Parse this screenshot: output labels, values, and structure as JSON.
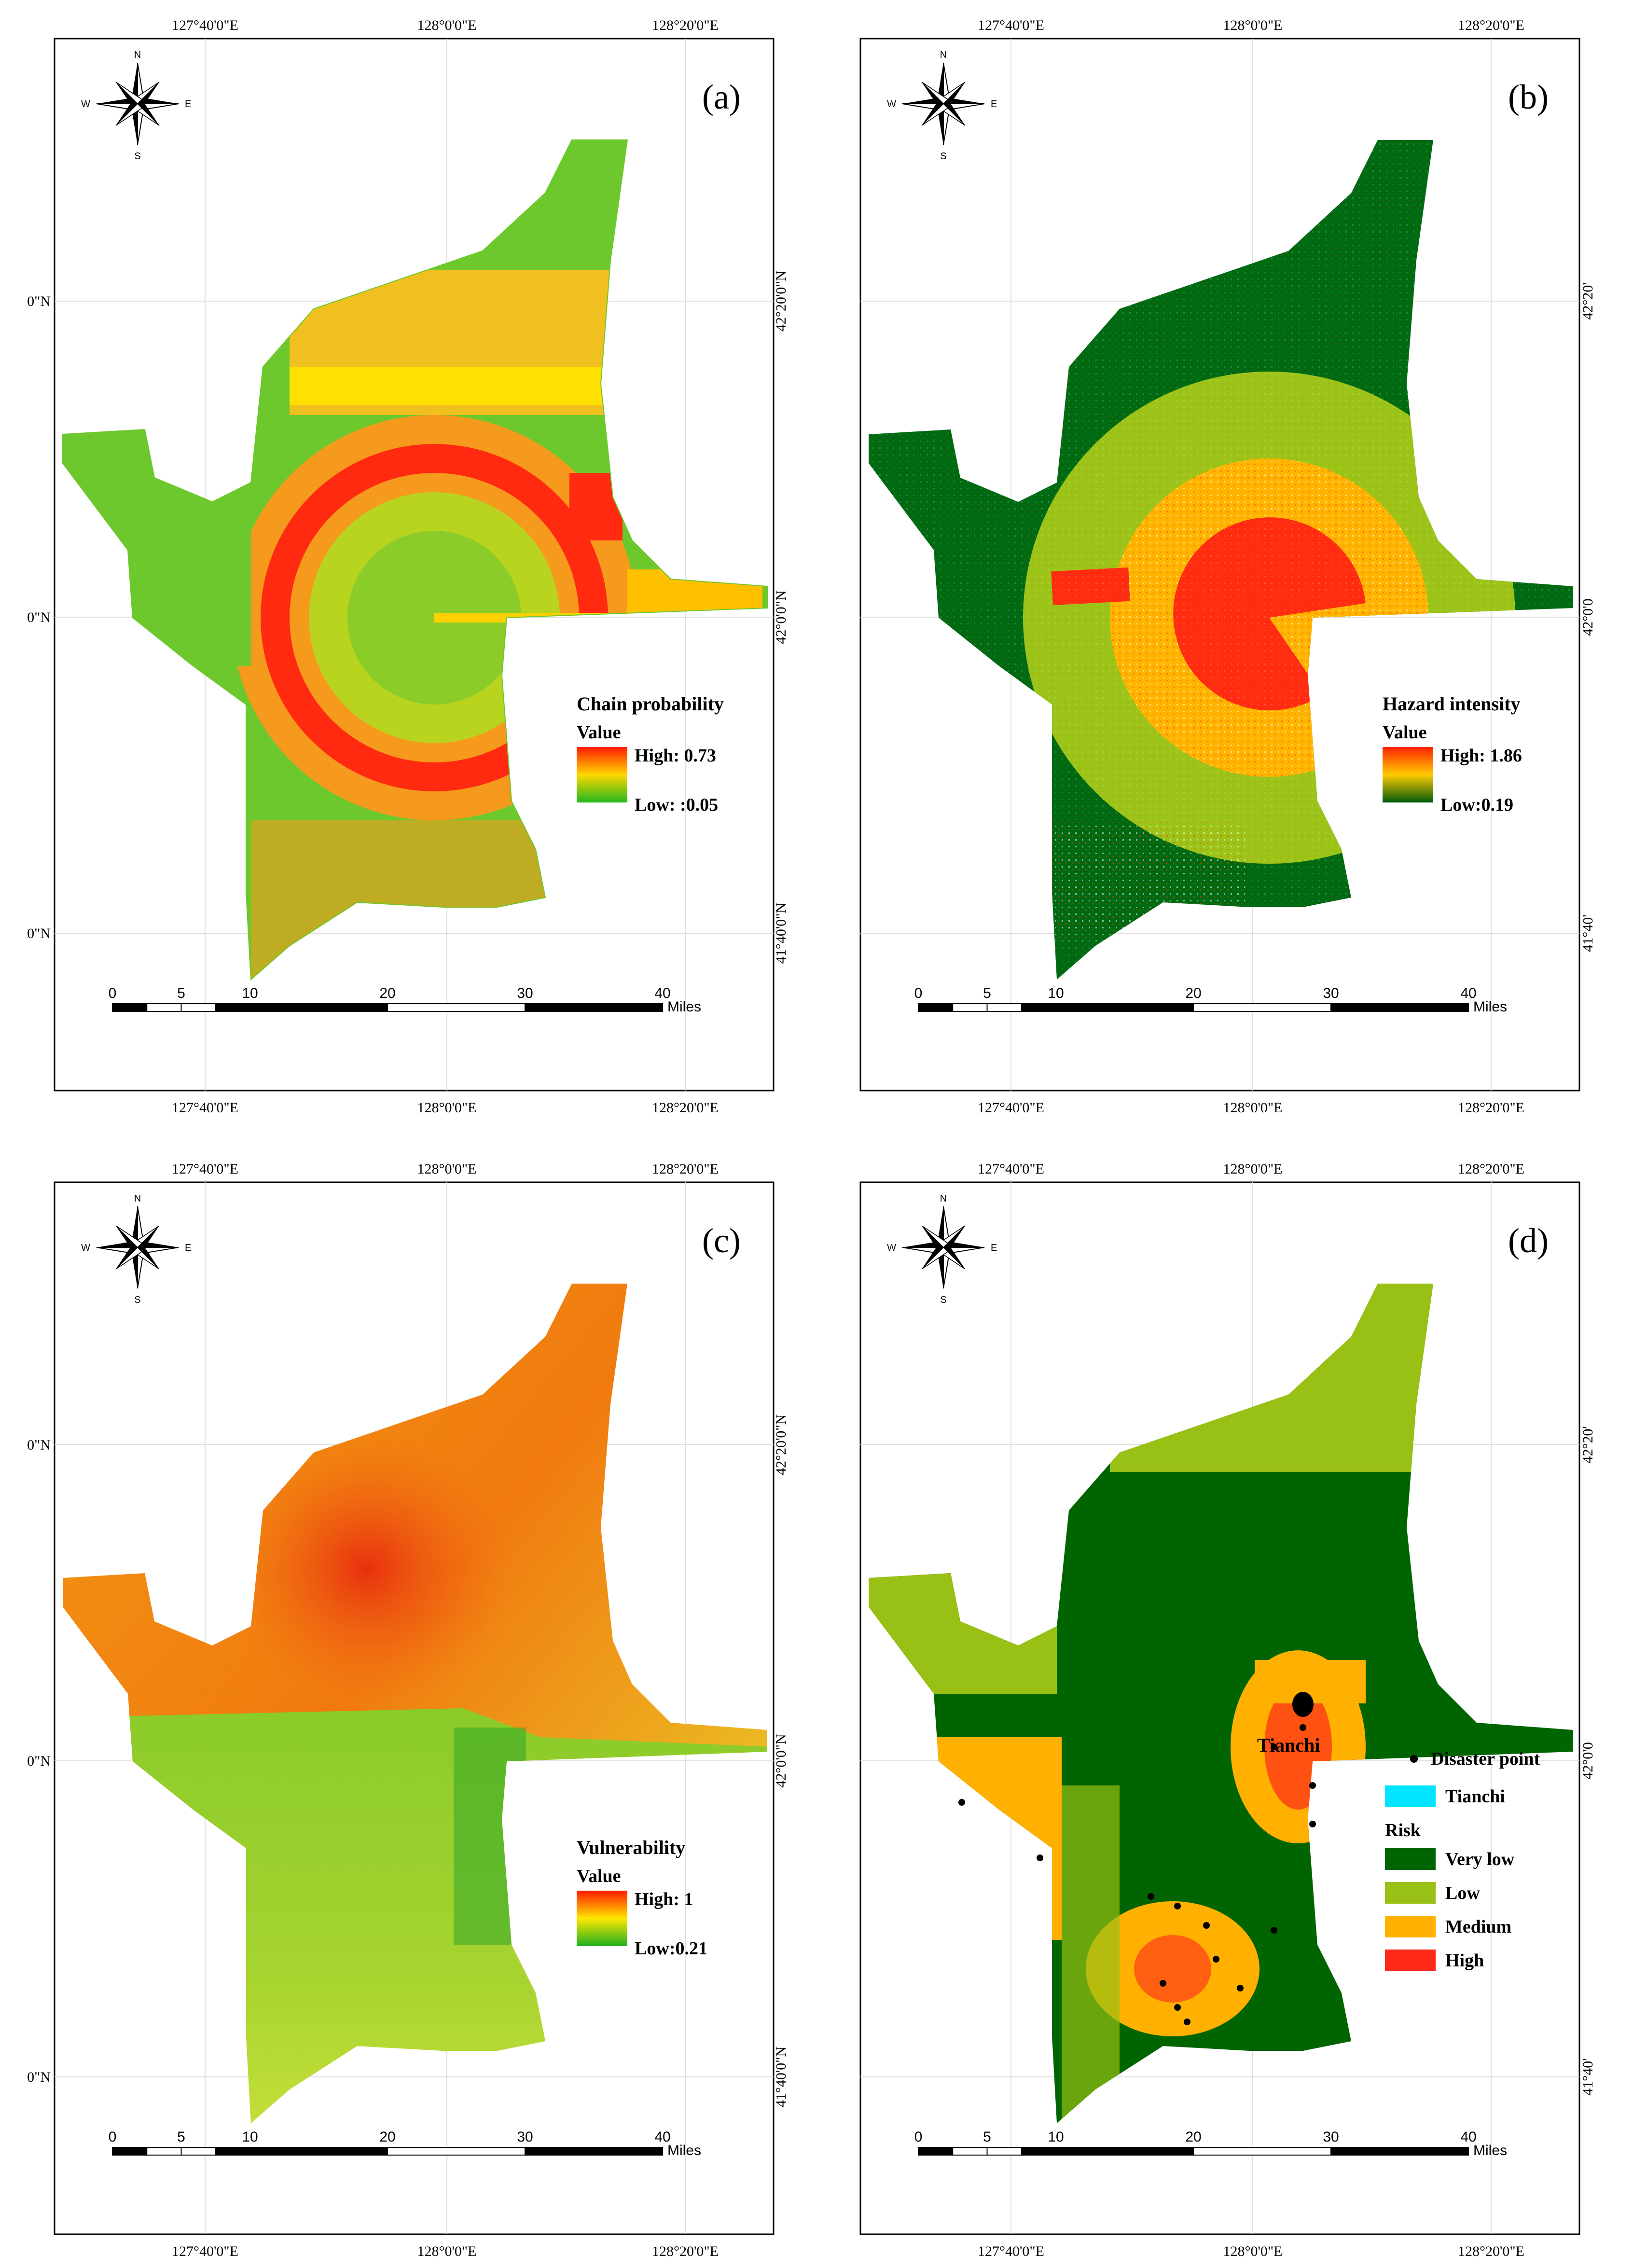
{
  "panels": [
    {
      "id": "a",
      "label": "(a)",
      "top_ticks": [
        "127°40'0\"E",
        "128°0'0\"E",
        "128°20'0\"E"
      ],
      "bottom_ticks": [
        "127°40'0\"E",
        "128°0'0\"E",
        "128°20'0\"E"
      ],
      "left_ticks": [
        "0\"N",
        "0\"N",
        "0\"N"
      ],
      "right_ticks": [
        "42°20'0\"N",
        "42°0'0\"N",
        "41°40'0\"N"
      ],
      "legend": {
        "type": "gradient",
        "title": "Chain probability",
        "subtitle": "Value",
        "high_label": "High:  0.73",
        "low_label": "Low:  :0.05",
        "colors": [
          "#ff1a00",
          "#ffd700",
          "#22b81e"
        ]
      }
    },
    {
      "id": "b",
      "label": "(b)",
      "top_ticks": [
        "127°40'0\"E",
        "128°0'0\"E",
        "128°20'0\"E"
      ],
      "bottom_ticks": [
        "127°40'0\"E",
        "128°0'0\"E",
        "128°20'0\"E"
      ],
      "left_ticks": [],
      "right_ticks": [
        "42°20'",
        "42°0'0",
        "41°40'"
      ],
      "legend": {
        "type": "gradient",
        "title": "Hazard intensity",
        "subtitle": "Value",
        "high_label": "High:  1.86",
        "low_label": "Low:0.19",
        "colors": [
          "#ff2200",
          "#ffcc00",
          "#005a0c"
        ]
      }
    },
    {
      "id": "c",
      "label": "(c)",
      "top_ticks": [
        "127°40'0\"E",
        "128°0'0\"E",
        "128°20'0\"E"
      ],
      "bottom_ticks": [
        "127°40'0\"E",
        "128°0'0\"E",
        "128°20'0\"E"
      ],
      "left_ticks": [
        "0\"N",
        "0\"N",
        "0\"N"
      ],
      "right_ticks": [
        "42°20'0\"N",
        "42°0'0\"N",
        "41°40'0\"N"
      ],
      "legend": {
        "type": "gradient",
        "title": "Vulnerability",
        "subtitle": "Value",
        "high_label": "High:  1",
        "low_label": "Low:0.21",
        "colors": [
          "#ff1a00",
          "#ffe600",
          "#20b020"
        ]
      }
    },
    {
      "id": "d",
      "label": "(d)",
      "top_ticks": [
        "127°40'0\"E",
        "128°0'0\"E",
        "128°20'0\"E"
      ],
      "bottom_ticks": [
        "127°40'0\"E",
        "128°0'0\"E",
        "128°20'0\"E"
      ],
      "left_ticks": [],
      "right_ticks": [
        "42°20'",
        "42°0'0",
        "41°40'"
      ],
      "map_label": "Tianchi",
      "legend": {
        "type": "categorical",
        "disaster_point_label": "Disaster point",
        "tianchi_label": "Tianchi",
        "tianchi_color": "#00e5ff",
        "risk_title": "Risk",
        "classes": [
          {
            "label": "Very low",
            "color": "#006400"
          },
          {
            "label": "Low",
            "color": "#99c014"
          },
          {
            "label": "Medium",
            "color": "#ffb000"
          },
          {
            "label": "High",
            "color": "#ff2a1a"
          }
        ]
      }
    }
  ],
  "scalebar": {
    "labels": [
      "0",
      "5",
      "10",
      "20",
      "30",
      "40"
    ],
    "values": [
      0,
      5,
      10,
      20,
      30,
      40
    ],
    "unit": "Miles"
  },
  "compass": {
    "n": "N",
    "s": "S",
    "e": "E",
    "w": "W"
  }
}
